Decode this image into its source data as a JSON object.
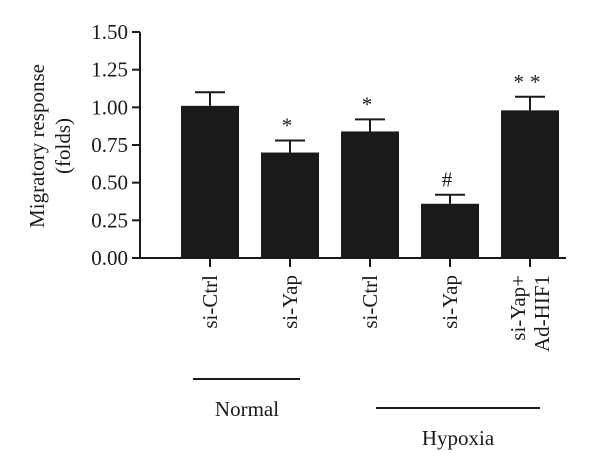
{
  "chart_data": {
    "type": "bar",
    "y_label": "Migratory response (folds)",
    "categories": [
      "si-Ctrl",
      "si-Yap",
      "si-Ctrl",
      "si-Yap",
      "si-Yap+\nAd-HIF1"
    ],
    "values": [
      1.01,
      0.7,
      0.84,
      0.36,
      0.98
    ],
    "errors": [
      0.09,
      0.08,
      0.08,
      0.06,
      0.09
    ],
    "annotations": [
      null,
      "*",
      "*",
      "#",
      "**"
    ],
    "groups": [
      "Normal",
      "Hypoxia"
    ],
    "color": "#1a1a1a",
    "ylim": [
      0,
      1.5
    ],
    "yticks": [
      {
        "value": 0,
        "label": "0.00"
      },
      {
        "value": 0.25,
        "label": "0.25"
      },
      {
        "value": 0.5,
        "label": "0.50"
      },
      {
        "value": 0.75,
        "label": "0.75"
      },
      {
        "value": 1,
        "label": "1.00"
      },
      {
        "value": 1.25,
        "label": "1.25"
      },
      {
        "value": 1.5,
        "label": "1.50"
      }
    ]
  }
}
